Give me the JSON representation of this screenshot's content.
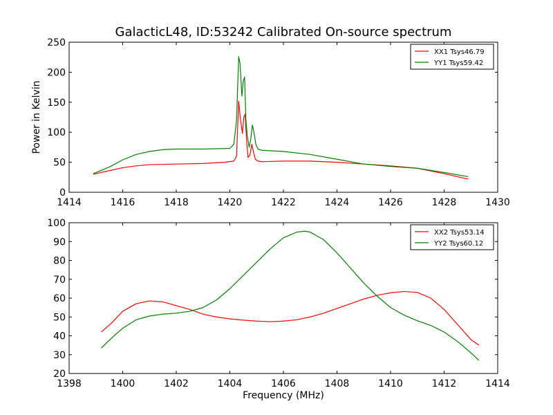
{
  "title": "GalacticL48, ID:53242 Calibrated On-source spectrum",
  "chart_data": [
    {
      "type": "line",
      "title": "GalacticL48, ID:53242 Calibrated On-source spectrum",
      "xlabel": "",
      "ylabel": "Power in Kelvin",
      "xlim": [
        1414,
        1430
      ],
      "ylim": [
        0,
        250
      ],
      "xticks": [
        1414,
        1416,
        1418,
        1420,
        1422,
        1424,
        1426,
        1428,
        1430
      ],
      "yticks": [
        0,
        50,
        100,
        150,
        200,
        250
      ],
      "legend_position": "top-right",
      "series": [
        {
          "name": "XX1 Tsys46.79",
          "color": "#ff0000",
          "x": [
            1414.9,
            1415.5,
            1416.0,
            1416.5,
            1417.0,
            1418.0,
            1419.0,
            1419.8,
            1420.15,
            1420.25,
            1420.33,
            1420.4,
            1420.47,
            1420.52,
            1420.57,
            1420.62,
            1420.68,
            1420.75,
            1420.82,
            1420.88,
            1420.95,
            1421.05,
            1421.2,
            1422.0,
            1423.0,
            1424.0,
            1425.0,
            1426.0,
            1427.0,
            1428.0,
            1428.9
          ],
          "y": [
            30,
            36,
            41,
            44,
            46,
            47,
            48,
            50,
            52,
            60,
            152,
            120,
            98,
            125,
            130,
            90,
            58,
            62,
            80,
            68,
            55,
            52,
            51,
            52,
            52,
            50,
            47,
            44,
            40,
            31,
            22
          ]
        },
        {
          "name": "YY1 Tsys59.42",
          "color": "#008000",
          "x": [
            1414.9,
            1415.5,
            1416.0,
            1416.5,
            1417.0,
            1417.5,
            1418.0,
            1419.0,
            1420.0,
            1420.15,
            1420.25,
            1420.33,
            1420.38,
            1420.45,
            1420.5,
            1420.55,
            1420.6,
            1420.65,
            1420.72,
            1420.78,
            1420.84,
            1420.9,
            1420.97,
            1421.05,
            1421.2,
            1422.0,
            1423.0,
            1424.0,
            1425.0,
            1426.0,
            1427.0,
            1428.0,
            1428.9
          ],
          "y": [
            31,
            42,
            54,
            63,
            68,
            71,
            72,
            72,
            73,
            80,
            120,
            226,
            215,
            160,
            185,
            192,
            120,
            95,
            75,
            88,
            112,
            100,
            80,
            72,
            70,
            68,
            63,
            55,
            47,
            43,
            40,
            33,
            26
          ]
        }
      ]
    },
    {
      "type": "line",
      "title": "",
      "xlabel": "Frequency (MHz)",
      "ylabel": "",
      "xlim": [
        1398,
        1414
      ],
      "ylim": [
        20,
        100
      ],
      "xticks": [
        1398,
        1400,
        1402,
        1404,
        1406,
        1408,
        1410,
        1412,
        1414
      ],
      "yticks": [
        20,
        30,
        40,
        50,
        60,
        70,
        80,
        90,
        100
      ],
      "legend_position": "top-right",
      "series": [
        {
          "name": "XX2 Tsys53.14",
          "color": "#ff0000",
          "x": [
            1399.2,
            1399.6,
            1400.0,
            1400.5,
            1401.0,
            1401.5,
            1402.0,
            1402.5,
            1403.0,
            1403.5,
            1404.0,
            1404.5,
            1405.0,
            1405.5,
            1406.0,
            1406.5,
            1407.0,
            1407.5,
            1408.0,
            1408.5,
            1409.0,
            1409.5,
            1410.0,
            1410.5,
            1411.0,
            1411.5,
            1412.0,
            1412.5,
            1413.0,
            1413.3
          ],
          "y": [
            42,
            47,
            53,
            57,
            58.5,
            58,
            56,
            54,
            51.5,
            50,
            49,
            48.3,
            47.8,
            47.5,
            47.8,
            48.5,
            50,
            52,
            54.5,
            57,
            59.5,
            61.5,
            62.8,
            63.5,
            63,
            60,
            54,
            46,
            38,
            35
          ]
        },
        {
          "name": "YY2 Tsys60.12",
          "color": "#008000",
          "x": [
            1399.2,
            1399.6,
            1400.0,
            1400.5,
            1401.0,
            1401.5,
            1402.0,
            1402.5,
            1403.0,
            1403.5,
            1404.0,
            1404.5,
            1405.0,
            1405.5,
            1406.0,
            1406.5,
            1406.8,
            1407.0,
            1407.5,
            1408.0,
            1408.5,
            1409.0,
            1409.5,
            1410.0,
            1410.5,
            1411.0,
            1411.5,
            1412.0,
            1412.5,
            1413.0,
            1413.3
          ],
          "y": [
            33.5,
            39,
            44,
            48.5,
            50.5,
            51.5,
            52,
            53,
            55,
            59,
            65,
            72,
            79,
            86,
            92,
            95,
            95.5,
            95,
            91,
            84,
            76,
            68,
            61,
            55,
            51,
            48,
            45.5,
            42,
            37,
            31,
            27
          ]
        }
      ]
    }
  ]
}
